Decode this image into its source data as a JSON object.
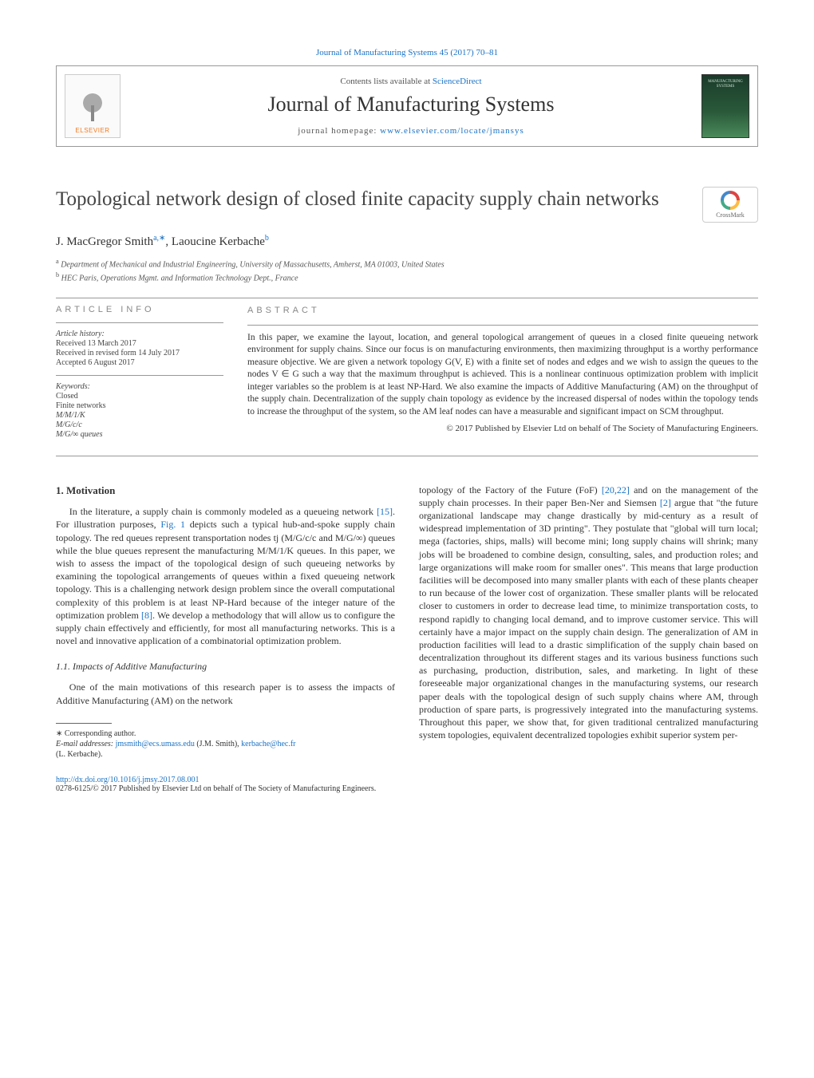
{
  "journal_ref": "Journal of Manufacturing Systems 45 (2017) 70–81",
  "header": {
    "contents_prefix": "Contents lists available at ",
    "contents_link": "ScienceDirect",
    "journal_name": "Journal of Manufacturing Systems",
    "homepage_prefix": "journal homepage: ",
    "homepage_url": "www.elsevier.com/locate/jmansys",
    "publisher_logo_text": "ELSEVIER",
    "cover_text": "MANUFACTURING SYSTEMS",
    "crossmark_label": "CrossMark"
  },
  "title": "Topological network design of closed finite capacity supply chain networks",
  "authors_html": "J. MacGregor Smith",
  "author_sup_a": "a,∗",
  "author_sep": ", ",
  "author2": "Laoucine Kerbache",
  "author_sup_b": "b",
  "affiliations": {
    "a_sup": "a",
    "a": " Department of Mechanical and Industrial Engineering, University of Massachusetts, Amherst, MA 01003, United States",
    "b_sup": "b",
    "b": " HEC Paris, Operations Mgmt. and Information Technology Dept., France"
  },
  "article_info": {
    "heading": "article info",
    "history_label": "Article history:",
    "received": "Received 13 March 2017",
    "revised": "Received in revised form 14 July 2017",
    "accepted": "Accepted 6 August 2017",
    "keywords_label": "Keywords:",
    "keywords": [
      "Closed",
      "Finite networks",
      "M/M/1/K",
      "M/G/c/c",
      "M/G/∞ queues"
    ]
  },
  "abstract": {
    "heading": "abstract",
    "text": "In this paper, we examine the layout, location, and general topological arrangement of queues in a closed finite queueing network environment for supply chains. Since our focus is on manufacturing environments, then maximizing throughput is a worthy performance measure objective. We are given a network topology G(V, E) with a finite set of nodes and edges and we wish to assign the queues to the nodes V ∈ G such a way that the maximum throughput is achieved. This is a nonlinear continuous optimization problem with implicit integer variables so the problem is at least NP-Hard. We also examine the impacts of Additive Manufacturing (AM) on the throughput of the supply chain. Decentralization of the supply chain topology as evidence by the increased dispersal of nodes within the topology tends to increase the throughput of the system, so the AM leaf nodes can have a measurable and significant impact on SCM throughput.",
    "copyright": "© 2017 Published by Elsevier Ltd on behalf of The Society of Manufacturing Engineers."
  },
  "body": {
    "section1_heading": "1. Motivation",
    "section1_p1_a": "In the literature, a supply chain is commonly modeled as a queueing network ",
    "section1_p1_cite1": "[15]",
    "section1_p1_b": ". For illustration purposes, ",
    "section1_p1_fig": "Fig. 1",
    "section1_p1_c": " depicts such a typical hub-and-spoke supply chain topology. The red queues represent transportation nodes tj (M/G/c/c and M/G/∞) queues while the blue queues represent the manufacturing M/M/1/K queues. In this paper, we wish to assess the impact of the topological design of such queueing networks by examining the topological arrangements of queues within a fixed queueing network topology. This is a challenging network design problem since the overall computational complexity of this problem is at least NP-Hard because of the integer nature of the optimization problem ",
    "section1_p1_cite2": "[8]",
    "section1_p1_d": ". We develop a methodology that will allow us to configure the supply chain effectively and efficiently, for most all manufacturing networks. This is a novel and innovative application of a combinatorial optimization problem.",
    "section11_heading": "1.1. Impacts of Additive Manufacturing",
    "section11_p1": "One of the main motivations of this research paper is to assess the impacts of Additive Manufacturing (AM) on the network ",
    "col2_p1_a": "topology of the Factory of the Future (FoF) ",
    "col2_cite1": "[20,22]",
    "col2_p1_b": " and on the management of the supply chain processes. In their paper Ben-Ner and Siemsen ",
    "col2_cite2": "[2]",
    "col2_p1_c": " argue that \"the future organizational landscape may change drastically by mid-century as a result of widespread implementation of 3D printing\". They postulate that \"global will turn local; mega (factories, ships, malls) will become mini; long supply chains will shrink; many jobs will be broadened to combine design, consulting, sales, and production roles; and large organizations will make room for smaller ones\". This means that large production facilities will be decomposed into many smaller plants with each of these plants cheaper to run because of the lower cost of organization. These smaller plants will be relocated closer to customers in order to decrease lead time, to minimize transportation costs, to respond rapidly to changing local demand, and to improve customer service. This will certainly have a major impact on the supply chain design. The generalization of AM in production facilities will lead to a drastic simplification of the supply chain based on decentralization throughout its different stages and its various business functions such as purchasing, production, distribution, sales, and marketing. In light of these foreseeable major organizational changes in the manufacturing systems, our research paper deals with the topological design of such supply chains where AM, through production of spare parts, is progressively integrated into the manufacturing systems. Throughout this paper, we show that, for given traditional centralized manufacturing system topologies, equivalent decentralized topologies exhibit superior system per-"
  },
  "footnotes": {
    "corr_label": "∗ Corresponding author.",
    "email_label": "E-mail addresses: ",
    "email1": "jmsmith@ecs.umass.edu",
    "email1_name": " (J.M. Smith), ",
    "email2": "kerbache@hec.fr",
    "email2_name": "(L. Kerbache)."
  },
  "footer": {
    "doi": "http://dx.doi.org/10.1016/j.jmsy.2017.08.001",
    "issn_line": "0278-6125/© 2017 Published by Elsevier Ltd on behalf of The Society of Manufacturing Engineers."
  },
  "colors": {
    "link": "#1a72c5",
    "text": "#333333",
    "rule": "#999999",
    "publisher_orange": "#f47b20"
  }
}
